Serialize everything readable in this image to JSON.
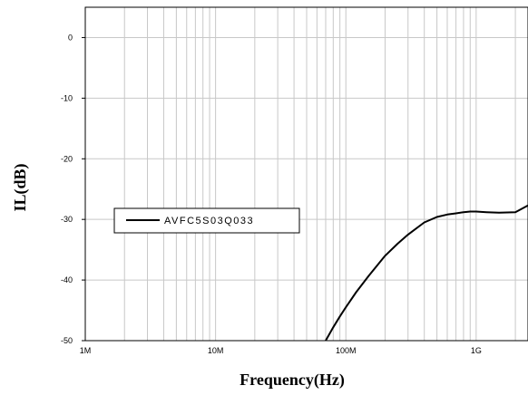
{
  "chart_data": {
    "type": "line",
    "title": "",
    "xlabel": "Frequency(Hz)",
    "ylabel": "IL(dB)",
    "x_scale": "log",
    "xlim": [
      1000000,
      2500000000
    ],
    "ylim": [
      -50,
      5
    ],
    "grid": true,
    "legend_position": "center-left",
    "x_ticks": [
      {
        "value": 1000000,
        "label": "1M"
      },
      {
        "value": 10000000,
        "label": "10M"
      },
      {
        "value": 100000000,
        "label": "100M"
      },
      {
        "value": 1000000000,
        "label": "1G"
      }
    ],
    "y_ticks": [
      {
        "value": 0,
        "label": "0"
      },
      {
        "value": -10,
        "label": "-10"
      },
      {
        "value": -20,
        "label": "-20"
      },
      {
        "value": -30,
        "label": "-30"
      },
      {
        "value": -40,
        "label": "-40"
      },
      {
        "value": -50,
        "label": "-50"
      }
    ],
    "series": [
      {
        "name": "AVFC5S03Q033",
        "color": "#000000",
        "x": [
          70000000,
          80000000,
          90000000,
          100000000,
          120000000,
          150000000,
          200000000,
          250000000,
          300000000,
          400000000,
          500000000,
          600000000,
          700000000,
          800000000,
          900000000,
          1000000000,
          1200000000,
          1500000000,
          2000000000,
          2500000000
        ],
        "y": [
          -50,
          -47.8,
          -46,
          -44.5,
          -42,
          -39.3,
          -36,
          -34,
          -32.5,
          -30.5,
          -29.6,
          -29.2,
          -29,
          -28.8,
          -28.7,
          -28.7,
          -28.8,
          -28.9,
          -28.8,
          -27.7
        ]
      }
    ]
  }
}
